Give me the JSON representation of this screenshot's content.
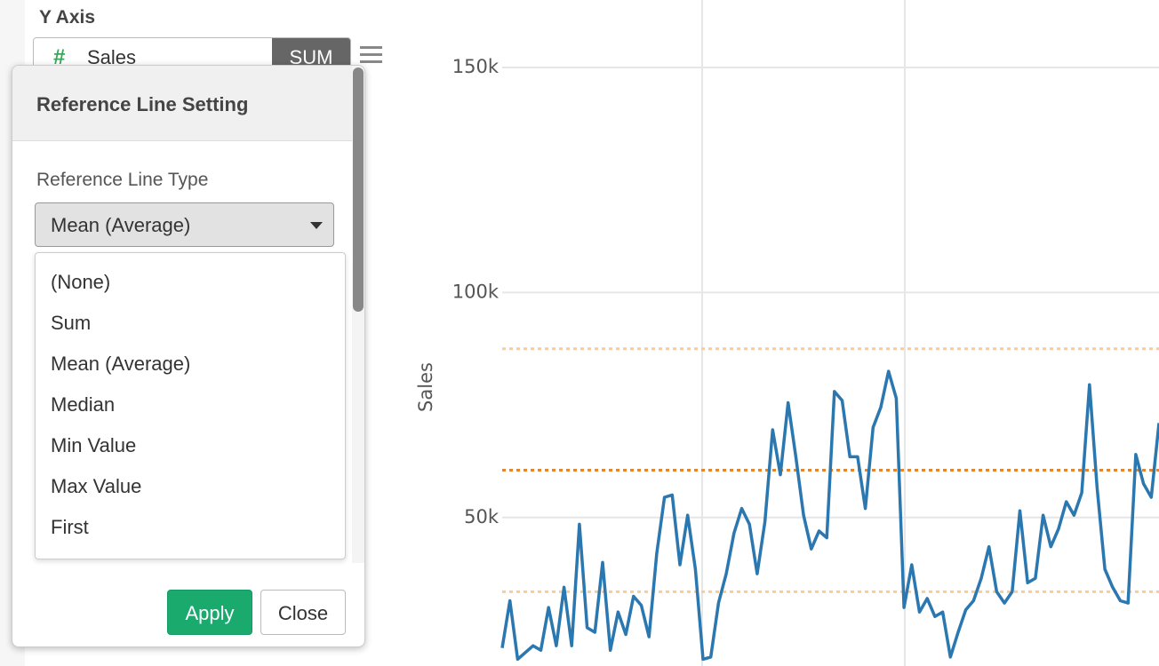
{
  "sidebar": {
    "section_title": "Y Axis",
    "field_icon": "#",
    "field_name": "Sales",
    "aggregation": "SUM"
  },
  "dialog": {
    "title": "Reference Line Setting",
    "type_label": "Reference Line Type",
    "selected": "Mean (Average)",
    "options": [
      "(None)",
      "Sum",
      "Mean (Average)",
      "Median",
      "Min Value",
      "Max Value",
      "First"
    ],
    "apply": "Apply",
    "close": "Close"
  },
  "chart_data": {
    "type": "line",
    "y_label": "Sales",
    "color": "#2b77b0",
    "ylim": [
      17000,
      165000
    ],
    "yticks": [
      {
        "value": 50000,
        "label": "50k"
      },
      {
        "value": 100000,
        "label": "100k"
      },
      {
        "value": 150000,
        "label": "150k"
      }
    ],
    "grid": true,
    "reference_lines": [
      {
        "value": 60500,
        "color": "#e8842c"
      },
      {
        "value": 87500,
        "color": "#f7cd9c"
      },
      {
        "value": 33500,
        "color": "#f7cd9c"
      }
    ],
    "values": [
      21000,
      31500,
      18500,
      20000,
      21500,
      20500,
      30000,
      21500,
      34500,
      21500,
      48500,
      25500,
      24500,
      40000,
      20500,
      29000,
      24000,
      32500,
      30500,
      23500,
      42000,
      54500,
      55000,
      39500,
      50500,
      38500,
      18500,
      19000,
      31000,
      37500,
      46500,
      52000,
      48500,
      37500,
      49000,
      69500,
      59500,
      75500,
      63500,
      50500,
      43000,
      47000,
      45500,
      78000,
      76000,
      63500,
      63500,
      52000,
      70000,
      74500,
      82500,
      76500,
      30000,
      39500,
      29000,
      32000,
      28000,
      29000,
      19000,
      24500,
      29500,
      31500,
      36500,
      43500,
      33500,
      31000,
      33500,
      51500,
      35500,
      36500,
      50500,
      43500,
      47500,
      53500,
      50500,
      55500,
      79500,
      56500,
      38500,
      34500,
      31500,
      31000,
      64000,
      57500,
      54500,
      71000
    ]
  }
}
